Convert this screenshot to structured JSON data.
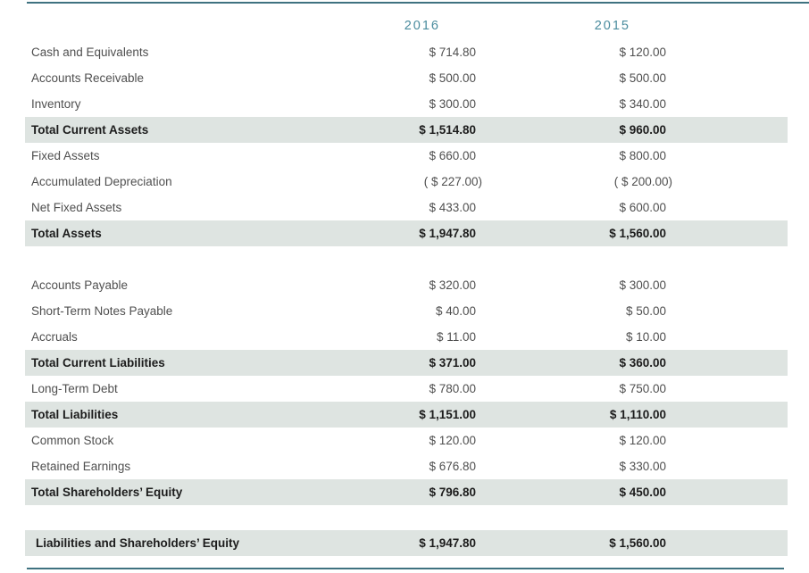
{
  "table": {
    "accent_color": "#4a8c9e",
    "rule_color": "#3f7280",
    "highlight_color": "#dee4e1",
    "text_color": "#4f4f4f",
    "bold_text_color": "#1c1c1c",
    "columns": [
      "2016",
      "2015"
    ],
    "sections": [
      {
        "name": "assets",
        "rows": [
          {
            "label": "Cash and Equivalents",
            "v2016": "$ 714.80",
            "v2015": "$ 120.00",
            "emphasis": false
          },
          {
            "label": "Accounts Receivable",
            "v2016": "$ 500.00",
            "v2015": "$ 500.00",
            "emphasis": false
          },
          {
            "label": "Inventory",
            "v2016": "$ 300.00",
            "v2015": "$ 340.00",
            "emphasis": false
          },
          {
            "label": "Total Current Assets",
            "v2016": "$ 1,514.80",
            "v2015": "$ 960.00",
            "emphasis": true
          },
          {
            "label": "Fixed Assets",
            "v2016": "$ 660.00",
            "v2015": "$ 800.00",
            "emphasis": false
          },
          {
            "label": "Accumulated Depreciation",
            "v2016": "( $ 227.00)",
            "v2015": "( $ 200.00)",
            "emphasis": false
          },
          {
            "label": "Net Fixed Assets",
            "v2016": "$ 433.00",
            "v2015": "$ 600.00",
            "emphasis": false
          },
          {
            "label": "Total Assets",
            "v2016": "$ 1,947.80",
            "v2015": "$ 1,560.00",
            "emphasis": true
          }
        ]
      },
      {
        "name": "liabilities-and-equity",
        "rows": [
          {
            "label": "Accounts Payable",
            "v2016": "$ 320.00",
            "v2015": "$ 300.00",
            "emphasis": false
          },
          {
            "label": "Short-Term Notes Payable",
            "v2016": "$ 40.00",
            "v2015": "$ 50.00",
            "emphasis": false
          },
          {
            "label": "Accruals",
            "v2016": "$ 11.00",
            "v2015": "$ 10.00",
            "emphasis": false
          },
          {
            "label": "Total Current Liabilities",
            "v2016": "$ 371.00",
            "v2015": "$ 360.00",
            "emphasis": true
          },
          {
            "label": "Long-Term Debt",
            "v2016": "$ 780.00",
            "v2015": "$ 750.00",
            "emphasis": false
          },
          {
            "label": "Total Liabilities",
            "v2016": "$ 1,151.00",
            "v2015": "$ 1,110.00",
            "emphasis": true
          },
          {
            "label": "Common Stock",
            "v2016": "$ 120.00",
            "v2015": "$ 120.00",
            "emphasis": false
          },
          {
            "label": "Retained Earnings",
            "v2016": "$ 676.80",
            "v2015": "$ 330.00",
            "emphasis": false
          },
          {
            "label": "Total Shareholders’ Equity",
            "v2016": "$ 796.80",
            "v2015": "$ 450.00",
            "emphasis": true
          }
        ]
      },
      {
        "name": "grand-total",
        "rows": [
          {
            "label": "Liabilities and Shareholders’ Equity",
            "v2016": "$ 1,947.80",
            "v2015": "$ 1,560.00",
            "emphasis": true,
            "indent": true
          }
        ]
      }
    ]
  }
}
